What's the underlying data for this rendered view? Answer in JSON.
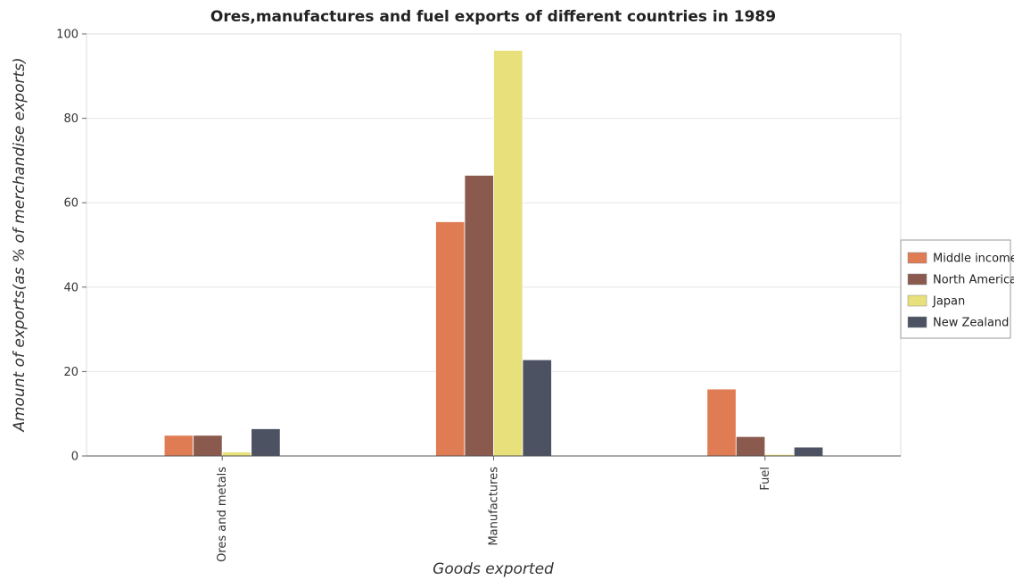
{
  "chart_data": {
    "type": "bar",
    "title": "Ores,manufactures and fuel exports of different countries in 1989",
    "xlabel": "Goods exported",
    "ylabel": "Amount of exports(as % of merchandise exports)",
    "categories": [
      "Ores and metals",
      "Manufactures",
      "Fuel"
    ],
    "ylim": [
      0,
      100
    ],
    "yticks": [
      0,
      20,
      40,
      60,
      80,
      100
    ],
    "grid": true,
    "legend_position": "right",
    "series": [
      {
        "name": "Middle income",
        "color": "#e07c54",
        "values": [
          4.9,
          55.5,
          15.85
        ]
      },
      {
        "name": "North America",
        "color": "#8b5a4e",
        "values": [
          4.9,
          66.5,
          4.6
        ]
      },
      {
        "name": "Japan",
        "color": "#e8e07a",
        "values": [
          0.95,
          96.1,
          0.38
        ]
      },
      {
        "name": "New Zealand",
        "color": "#4c5262",
        "values": [
          6.45,
          22.8,
          2.1
        ]
      }
    ]
  }
}
